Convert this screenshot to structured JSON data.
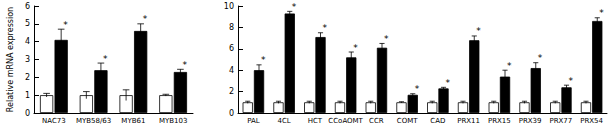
{
  "chart_data": [
    {
      "type": "bar",
      "y_label": "Relative mRNA expression",
      "categories": [
        "NAC73",
        "MYB58/63",
        "MYB61",
        "MYB103"
      ],
      "series": [
        {
          "color": "#ffffff",
          "values": [
            1,
            1,
            1,
            1
          ],
          "errors": [
            0.1,
            0.2,
            0.3,
            0.05
          ]
        },
        {
          "color": "#000000",
          "values": [
            4.1,
            2.4,
            4.6,
            2.3
          ],
          "errors": [
            0.6,
            0.4,
            0.4,
            0.15
          ],
          "annotation": "*"
        }
      ],
      "ylim": [
        0,
        6
      ],
      "yticks": [
        0,
        1,
        2,
        3,
        4,
        5,
        6
      ],
      "grid": false
    },
    {
      "type": "bar",
      "categories": [
        "PAL",
        "4CL",
        "HCT",
        "CCoAOMT",
        "CCR",
        "COMT",
        "CAD",
        "PRX11",
        "PRX15",
        "PRX39",
        "PRX77",
        "PRX54"
      ],
      "series": [
        {
          "color": "#ffffff",
          "values": [
            1,
            1,
            1,
            1,
            1,
            1,
            1,
            1,
            1,
            1,
            1,
            1
          ],
          "errors": [
            0.1,
            0.1,
            0.1,
            0.1,
            0.1,
            0.05,
            0.1,
            0.1,
            0.1,
            0.1,
            0.1,
            0.1
          ]
        },
        {
          "color": "#000000",
          "values": [
            4.0,
            9.3,
            7.1,
            5.2,
            6.1,
            1.7,
            2.3,
            6.8,
            3.4,
            4.2,
            2.4,
            8.6
          ],
          "errors": [
            0.5,
            0.2,
            0.4,
            0.5,
            0.4,
            0.1,
            0.1,
            0.4,
            0.6,
            0.5,
            0.2,
            0.3
          ],
          "annotation": "*"
        }
      ],
      "ylim": [
        0,
        10
      ],
      "yticks": [
        0,
        2,
        4,
        6,
        8,
        10
      ],
      "grid": false
    }
  ]
}
